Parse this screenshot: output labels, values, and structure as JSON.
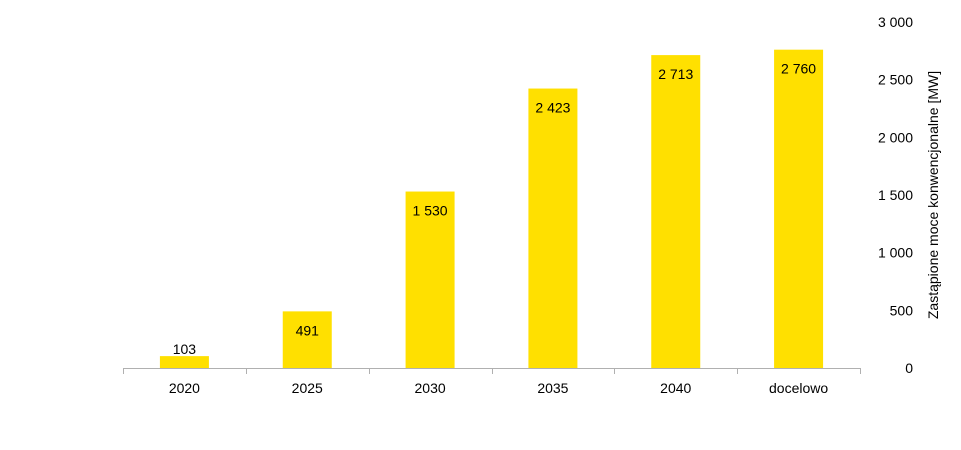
{
  "chart_data": {
    "type": "bar",
    "categories": [
      "2020",
      "2025",
      "2030",
      "2035",
      "2040",
      "docelowo"
    ],
    "values": [
      103,
      491,
      1530,
      2423,
      2713,
      2760
    ],
    "value_labels": [
      "103",
      "491",
      "1 530",
      "2 423",
      "2 713",
      "2 760"
    ],
    "ylabel": "Zastąpione  moce konwencjonalne  [MW]",
    "ylim": [
      0,
      3000
    ],
    "yticks": [
      0,
      500,
      1000,
      1500,
      2000,
      2500,
      3000
    ],
    "ytick_labels": [
      "0",
      "500",
      "1 000",
      "1 500",
      "2 000",
      "2 500",
      "3 000"
    ],
    "y_axis_side": "right",
    "grid": false,
    "legend": "none",
    "bar_color": "#FFE000"
  }
}
